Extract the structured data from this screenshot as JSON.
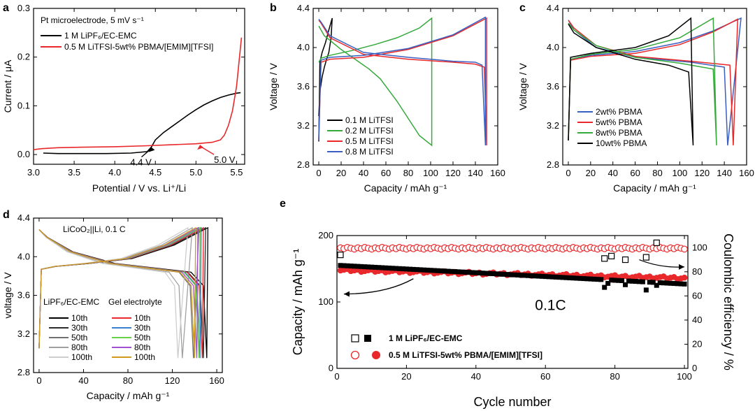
{
  "chart_data": [
    {
      "id": "a",
      "panel_letter": "a",
      "type": "line",
      "annotation_title": "Pt microelectrode, 5 mV s⁻¹",
      "xlabel": "Potential / V vs. Li⁺/Li",
      "ylabel": "Current / μA",
      "xlim": [
        3.0,
        5.6
      ],
      "ylim": [
        -0.02,
        0.3
      ],
      "xticks": [
        3.0,
        3.5,
        4.0,
        4.5,
        5.0,
        5.5
      ],
      "yticks": [
        0.0,
        0.1,
        0.2,
        0.3
      ],
      "series": [
        {
          "name": "1 M LiPF₆/EC-EMC",
          "color": "#000000",
          "x": [
            3.12,
            3.3,
            3.6,
            3.9,
            4.2,
            4.4,
            4.45,
            4.5,
            4.6,
            4.7,
            4.8,
            4.9,
            5.0,
            5.1,
            5.2,
            5.3,
            5.4,
            5.5,
            5.55
          ],
          "y": [
            0.003,
            0.002,
            0.002,
            0.002,
            0.003,
            0.006,
            0.015,
            0.03,
            0.045,
            0.057,
            0.069,
            0.081,
            0.092,
            0.102,
            0.11,
            0.117,
            0.122,
            0.126,
            0.127
          ]
        },
        {
          "name": "0.5 M LiTFSI-5wt% PBMA/[EMIM][TFSI]",
          "color": "#e8282b",
          "x": [
            3.0,
            3.1,
            3.3,
            3.6,
            4.0,
            4.4,
            4.7,
            5.0,
            5.2,
            5.3,
            5.35,
            5.4,
            5.45,
            5.5,
            5.53,
            5.56
          ],
          "y": [
            0.01,
            0.012,
            0.014,
            0.015,
            0.016,
            0.018,
            0.02,
            0.022,
            0.025,
            0.03,
            0.04,
            0.06,
            0.09,
            0.14,
            0.19,
            0.24
          ]
        }
      ],
      "annotations": [
        {
          "text": "4.4 V",
          "color": "#000000",
          "x": 4.45,
          "y": 0.015
        },
        {
          "text": "5.0 V",
          "color": "#e8282b",
          "x": 5.05,
          "y": 0.02
        }
      ]
    },
    {
      "id": "b",
      "panel_letter": "b",
      "type": "line",
      "xlabel": "Capacity / mAh g⁻¹",
      "ylabel": "Voltage / V",
      "xlim": [
        -5,
        160
      ],
      "ylim": [
        2.8,
        4.4
      ],
      "xticks": [
        0,
        20,
        40,
        60,
        80,
        100,
        120,
        140,
        160
      ],
      "yticks": [
        2.8,
        3.2,
        3.6,
        4.0,
        4.4
      ],
      "series": [
        {
          "name": "0.1 M LiTFSI",
          "color": "#000000",
          "x": [
            0,
            1,
            3,
            6,
            9,
            12,
            12,
            11,
            9,
            7,
            5,
            3,
            1,
            0
          ],
          "y": [
            3.04,
            3.85,
            3.95,
            4.05,
            4.18,
            4.3,
            4.3,
            4.1,
            3.95,
            3.88,
            3.8,
            3.7,
            3.55,
            3.3
          ]
        },
        {
          "name": "0.2 M LiTFSI",
          "color": "#35a93a",
          "x": [
            0,
            2,
            10,
            30,
            50,
            70,
            90,
            101,
            101,
            90,
            70,
            55,
            45,
            35,
            20,
            5,
            0
          ],
          "y": [
            3.85,
            3.89,
            3.92,
            3.97,
            4.03,
            4.1,
            4.2,
            4.3,
            3.0,
            3.1,
            3.45,
            3.68,
            3.78,
            3.86,
            3.98,
            4.12,
            4.22
          ]
        },
        {
          "name": "0.5 M LiTFSI",
          "color": "#e8282b",
          "x": [
            0,
            2,
            10,
            40,
            80,
            120,
            150,
            150,
            148,
            140,
            120,
            80,
            40,
            10,
            2,
            0
          ],
          "y": [
            3.05,
            3.85,
            3.88,
            3.9,
            3.98,
            4.12,
            4.3,
            3.0,
            3.8,
            3.83,
            3.85,
            3.88,
            3.93,
            4.1,
            4.25,
            4.28
          ]
        },
        {
          "name": "0.8 M LiTFSI",
          "color": "#3b5fc0",
          "x": [
            0,
            2,
            10,
            40,
            80,
            120,
            149,
            149,
            146,
            140,
            120,
            80,
            40,
            10,
            2,
            0
          ],
          "y": [
            3.05,
            3.87,
            3.9,
            3.92,
            3.99,
            4.13,
            4.31,
            3.0,
            3.82,
            3.85,
            3.86,
            3.9,
            3.95,
            4.12,
            4.26,
            4.29
          ]
        }
      ]
    },
    {
      "id": "c",
      "panel_letter": "c",
      "type": "line",
      "xlabel": "Capacity / mAh g⁻¹",
      "ylabel": "Voltage / V",
      "xlim": [
        -5,
        160
      ],
      "ylim": [
        2.8,
        4.4
      ],
      "xticks": [
        0,
        20,
        40,
        60,
        80,
        100,
        120,
        140,
        160
      ],
      "yticks": [
        2.8,
        3.2,
        3.6,
        4.0,
        4.4
      ],
      "series": [
        {
          "name": "2wt% PBMA",
          "color": "#3b5fc0",
          "x": [
            0,
            2,
            20,
            60,
            100,
            130,
            155,
            155,
            143,
            140,
            110,
            60,
            25,
            5,
            0
          ],
          "y": [
            3.05,
            3.88,
            3.92,
            3.96,
            4.05,
            4.17,
            4.3,
            4.3,
            3.0,
            3.8,
            3.85,
            3.9,
            4.0,
            4.18,
            4.28
          ]
        },
        {
          "name": "5wt% PBMA",
          "color": "#e8282b",
          "x": [
            0,
            2,
            20,
            60,
            100,
            130,
            152,
            152,
            148,
            145,
            110,
            60,
            25,
            5,
            0
          ],
          "y": [
            3.05,
            3.87,
            3.91,
            3.94,
            4.03,
            4.16,
            4.29,
            4.29,
            3.0,
            3.82,
            3.86,
            3.91,
            4.02,
            4.2,
            4.28
          ]
        },
        {
          "name": "8wt% PBMA",
          "color": "#35a93a",
          "x": [
            0,
            2,
            20,
            60,
            100,
            130,
            130,
            133,
            130,
            100,
            60,
            25,
            5,
            0
          ],
          "y": [
            3.05,
            3.88,
            3.93,
            3.98,
            4.1,
            4.3,
            4.3,
            3.0,
            3.78,
            3.84,
            3.9,
            4.02,
            4.18,
            4.25
          ]
        },
        {
          "name": "10wt% PBMA",
          "color": "#000000",
          "x": [
            0,
            2,
            20,
            60,
            90,
            110,
            110,
            112,
            108,
            90,
            60,
            25,
            5,
            0
          ],
          "y": [
            3.05,
            3.9,
            3.94,
            4.0,
            4.12,
            4.3,
            4.3,
            3.0,
            3.75,
            3.82,
            3.88,
            4.0,
            4.15,
            4.24
          ]
        }
      ]
    },
    {
      "id": "d",
      "panel_letter": "d",
      "type": "line",
      "annotation_title": "LiCoO₂||Li, 0.1 C",
      "xlabel": "Capacity / mAh g⁻¹",
      "ylabel": "voltage / V",
      "xlim": [
        -5,
        165
      ],
      "ylim": [
        2.8,
        4.4
      ],
      "xticks": [
        0,
        40,
        80,
        120,
        160
      ],
      "yticks": [
        2.8,
        3.2,
        3.6,
        4.0,
        4.4
      ],
      "legend_group_titles": [
        "LiPF₆/EC-EMC",
        "Gel electrolyte"
      ],
      "series": [
        {
          "name": "10th",
          "group": "LiPF₆/EC-EMC",
          "color": "#000000",
          "endCharge": 152,
          "endDischarge": 152
        },
        {
          "name": "30th",
          "group": "LiPF₆/EC-EMC",
          "color": "#2b2b2b",
          "endCharge": 150,
          "endDischarge": 149
        },
        {
          "name": "50th",
          "group": "LiPF₆/EC-EMC",
          "color": "#707070",
          "endCharge": 144,
          "endDischarge": 140
        },
        {
          "name": "80th",
          "group": "LiPF₆/EC-EMC",
          "color": "#a0a0a0",
          "endCharge": 138,
          "endDischarge": 130
        },
        {
          "name": "100th",
          "group": "LiPF₆/EC-EMC",
          "color": "#cdcdcd",
          "endCharge": 134,
          "endDischarge": 126
        },
        {
          "name": "10th",
          "group": "Gel electrolyte",
          "color": "#e8282b",
          "endCharge": 148,
          "endDischarge": 148
        },
        {
          "name": "30th",
          "group": "Gel electrolyte",
          "color": "#3b7fd0",
          "endCharge": 146,
          "endDischarge": 146
        },
        {
          "name": "50th",
          "group": "Gel electrolyte",
          "color": "#6ad14a",
          "endCharge": 145,
          "endDischarge": 145
        },
        {
          "name": "80th",
          "group": "Gel electrolyte",
          "color": "#a24fd0",
          "endCharge": 143,
          "endDischarge": 143
        },
        {
          "name": "100th",
          "group": "Gel electrolyte",
          "color": "#cf9a1e",
          "endCharge": 141,
          "endDischarge": 141
        }
      ]
    },
    {
      "id": "e",
      "panel_letter": "e",
      "type": "scatter",
      "annotation_title": "0.1C",
      "xlabel": "Cycle number",
      "ylabel": "Capacity / mAh g⁻¹",
      "y2label": "Coulombic efficiency / %",
      "xlim": [
        0,
        101
      ],
      "ylim": [
        0,
        200
      ],
      "y2lim": [
        0,
        110
      ],
      "xticks": [
        0,
        20,
        40,
        60,
        80,
        100
      ],
      "yticks": [
        0,
        100,
        200
      ],
      "y2ticks": [
        0,
        20,
        40,
        60,
        80,
        100
      ],
      "series": [
        {
          "name": "1 M LiPF₆/EC-EMC",
          "marker": "square-filled",
          "axis": "left",
          "color": "#000000",
          "start": 155,
          "end": 127,
          "outliers": [
            [
              77,
              122
            ],
            [
              78,
              128
            ],
            [
              83,
              126
            ],
            [
              89,
              118
            ],
            [
              92,
              125
            ]
          ]
        },
        {
          "name": "1 M LiPF₆/EC-EMC",
          "marker": "square-open",
          "axis": "right",
          "color": "#000000",
          "points": [
            [
              1,
              94
            ],
            [
              77,
              91
            ],
            [
              79,
              93
            ],
            [
              83,
              90
            ],
            [
              89,
              92
            ],
            [
              92,
              104
            ]
          ]
        },
        {
          "name": "0.5 M LiTFSI-5wt% PBMA/[EMIM][TFSI]",
          "marker": "circle-filled",
          "axis": "left",
          "color": "#e8282b",
          "start": 148,
          "end": 136
        },
        {
          "name": "0.5 M LiTFSI-5wt% PBMA/[EMIM][TFSI]",
          "marker": "circle-open",
          "axis": "right",
          "color": "#e8282b",
          "value": 99.5
        }
      ]
    }
  ]
}
